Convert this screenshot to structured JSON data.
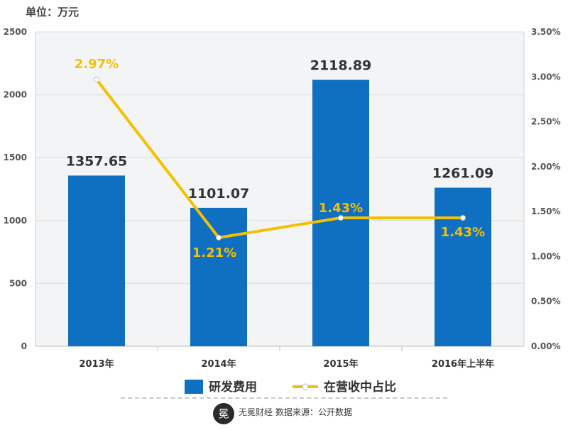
{
  "chart_data": {
    "type": "bar",
    "title": "",
    "unit_label": "单位：万元",
    "categories": [
      "2013年",
      "2014年",
      "2015年",
      "2016年上半年"
    ],
    "series": [
      {
        "name": "研发费用",
        "type": "bar",
        "axis": "left",
        "values": [
          1357.65,
          1101.07,
          2118.89,
          1261.09
        ],
        "labels": [
          "1357.65",
          "1101.07",
          "2118.89",
          "1261.09"
        ],
        "color": "#0f6fc1"
      },
      {
        "name": "在营收中占比",
        "type": "line",
        "axis": "right",
        "values": [
          2.97,
          1.21,
          1.43,
          1.43
        ],
        "labels": [
          "2.97%",
          "1.21%",
          "1.43%",
          "1.43%"
        ],
        "color": "#f5c000"
      }
    ],
    "y_left": {
      "min": 0,
      "max": 2500,
      "ticks": [
        "0",
        "500",
        "1000",
        "1500",
        "2000",
        "2500"
      ]
    },
    "y_right": {
      "min": 0,
      "max": 3.5,
      "ticks": [
        "0.00%",
        "0.50%",
        "1.00%",
        "1.50%",
        "2.00%",
        "2.50%",
        "3.00%",
        "3.50%"
      ]
    },
    "grid": true,
    "legend": "bottom"
  },
  "footer": {
    "brand": "无冕财经",
    "source": "数据来源：公开数据",
    "logo_glyph": "冕"
  }
}
